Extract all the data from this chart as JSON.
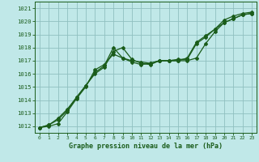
{
  "xlabel": "Graphe pression niveau de la mer (hPa)",
  "bg_color": "#c0e8e8",
  "grid_color": "#90c0c0",
  "line_color": "#1a5c1a",
  "marker": "D",
  "markersize": 2.0,
  "linewidth": 0.9,
  "ylim": [
    1011.5,
    1021.5
  ],
  "xlim": [
    -0.5,
    23.5
  ],
  "yticks": [
    1012,
    1013,
    1014,
    1015,
    1016,
    1017,
    1018,
    1019,
    1020,
    1021
  ],
  "xticks": [
    0,
    1,
    2,
    3,
    4,
    5,
    6,
    7,
    8,
    9,
    10,
    11,
    12,
    13,
    14,
    15,
    16,
    17,
    18,
    19,
    20,
    21,
    22,
    23
  ],
  "line1": [
    1011.9,
    1012.0,
    1012.2,
    1013.1,
    1014.1,
    1015.0,
    1016.3,
    1016.7,
    1017.5,
    1017.2,
    1016.9,
    1016.7,
    1016.8,
    1017.0,
    1017.0,
    1017.0,
    1017.0,
    1017.2,
    1018.3,
    1019.2,
    1019.9,
    1020.2,
    1020.5,
    1020.6
  ],
  "line2": [
    1011.9,
    1012.1,
    1012.5,
    1013.2,
    1014.2,
    1015.1,
    1016.0,
    1016.5,
    1017.7,
    1018.0,
    1017.1,
    1016.8,
    1016.7,
    1017.0,
    1017.0,
    1017.1,
    1017.1,
    1018.3,
    1018.8,
    1019.4,
    1020.1,
    1020.4,
    1020.6,
    1020.7
  ],
  "line3": [
    1011.9,
    1012.1,
    1012.6,
    1013.3,
    1014.2,
    1015.1,
    1016.1,
    1016.6,
    1018.0,
    1017.2,
    1017.0,
    1016.9,
    1016.8,
    1017.0,
    1017.0,
    1017.0,
    1017.2,
    1018.4,
    1018.9,
    1019.4,
    1019.9,
    1020.2,
    1020.5,
    1020.6
  ]
}
